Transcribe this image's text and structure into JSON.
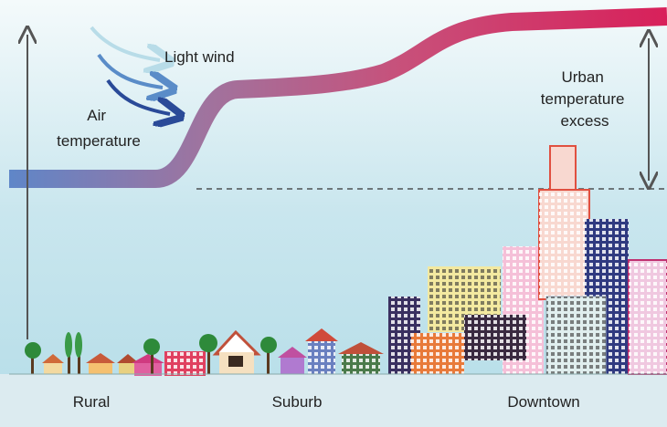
{
  "labels": {
    "light_wind": "Light wind",
    "air_temperature": [
      "Air",
      "temperature"
    ],
    "urban_excess": [
      "Urban",
      "temperature",
      "excess"
    ]
  },
  "zones": [
    "Rural",
    "Suburb",
    "Downtown"
  ]
}
